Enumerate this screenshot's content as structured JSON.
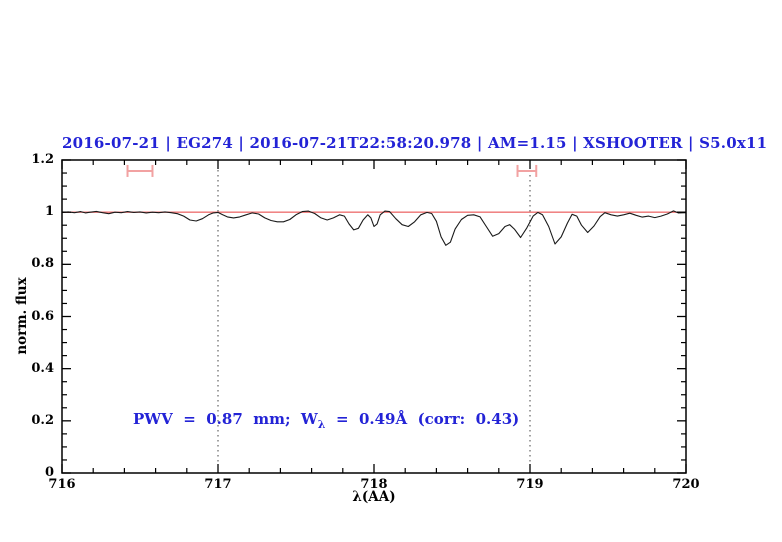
{
  "title": {
    "text": "2016-07-21 | EG274 | 2016-07-21T22:58:20.978 | AM=1.15 | XSHOOTER | S5.0x11",
    "color": "#2323d6"
  },
  "annotation": {
    "part1": "PWV  =  0.87  mm;  W",
    "subscript": "λ",
    "part2": "  =  0.49Å  (corr:  0.43)",
    "color": "#2323d6"
  },
  "chart_data": {
    "type": "line",
    "title": "2016-07-21 | EG274 | 2016-07-21T22:58:20.978 | AM=1.15 | XSHOOTER | S5.0x11",
    "xlabel": "λ(AA)",
    "ylabel": "norm. flux",
    "xlim": [
      716,
      720
    ],
    "ylim": [
      0,
      1.2
    ],
    "grid": false,
    "x_major_ticks": [
      716,
      717,
      718,
      719,
      720
    ],
    "x_tick_labels": [
      "716",
      "717",
      "718",
      "719",
      "720"
    ],
    "x_minor_step": 0.2,
    "y_major_ticks": [
      0,
      0.2,
      0.4,
      0.6,
      0.8,
      1,
      1.2
    ],
    "y_tick_labels": [
      "0",
      "0.2",
      "0.4",
      "0.6",
      "0.8",
      "1",
      "1.2"
    ],
    "y_minor_step": 0.05,
    "vlines": {
      "x": [
        717,
        719
      ],
      "style": "dotted",
      "color": "#444444"
    },
    "continuum_line": {
      "y": 1.0,
      "color": "#ee7272"
    },
    "range_markers": {
      "color": "#f2a2a2",
      "y": 1.158,
      "cap_halfheight": 0.023,
      "items": [
        {
          "x1": 716.42,
          "x2": 716.58
        },
        {
          "x1": 718.92,
          "x2": 719.04
        }
      ]
    },
    "series": [
      {
        "name": "spectrum",
        "color": "#1a1a1a",
        "points": [
          [
            716.0,
            0.999
          ],
          [
            716.04,
            1.001
          ],
          [
            716.08,
            0.998
          ],
          [
            716.12,
            1.002
          ],
          [
            716.15,
            0.997
          ],
          [
            716.18,
            1.0
          ],
          [
            716.22,
            1.003
          ],
          [
            716.26,
            0.998
          ],
          [
            716.3,
            0.994
          ],
          [
            716.34,
            1.0
          ],
          [
            716.38,
            0.998
          ],
          [
            716.42,
            1.002
          ],
          [
            716.46,
            0.999
          ],
          [
            716.5,
            1.001
          ],
          [
            716.54,
            0.997
          ],
          [
            716.58,
            1.0
          ],
          [
            716.62,
            0.998
          ],
          [
            716.66,
            1.001
          ],
          [
            716.7,
            0.998
          ],
          [
            716.74,
            0.994
          ],
          [
            716.78,
            0.985
          ],
          [
            716.82,
            0.97
          ],
          [
            716.86,
            0.966
          ],
          [
            716.9,
            0.975
          ],
          [
            716.94,
            0.99
          ],
          [
            716.97,
            0.997
          ],
          [
            717.0,
            0.999
          ],
          [
            717.03,
            0.99
          ],
          [
            717.06,
            0.982
          ],
          [
            717.1,
            0.978
          ],
          [
            717.14,
            0.982
          ],
          [
            717.18,
            0.99
          ],
          [
            717.22,
            0.997
          ],
          [
            717.26,
            0.993
          ],
          [
            717.3,
            0.978
          ],
          [
            717.34,
            0.968
          ],
          [
            717.38,
            0.963
          ],
          [
            717.42,
            0.963
          ],
          [
            717.46,
            0.972
          ],
          [
            717.5,
            0.99
          ],
          [
            717.54,
            1.002
          ],
          [
            717.58,
            1.004
          ],
          [
            717.62,
            0.995
          ],
          [
            717.66,
            0.978
          ],
          [
            717.7,
            0.97
          ],
          [
            717.74,
            0.978
          ],
          [
            717.78,
            0.99
          ],
          [
            717.81,
            0.985
          ],
          [
            717.84,
            0.955
          ],
          [
            717.87,
            0.932
          ],
          [
            717.9,
            0.938
          ],
          [
            717.93,
            0.97
          ],
          [
            717.96,
            0.99
          ],
          [
            717.98,
            0.978
          ],
          [
            718.0,
            0.945
          ],
          [
            718.02,
            0.955
          ],
          [
            718.04,
            0.99
          ],
          [
            718.07,
            1.004
          ],
          [
            718.1,
            1.002
          ],
          [
            718.14,
            0.975
          ],
          [
            718.18,
            0.952
          ],
          [
            718.22,
            0.945
          ],
          [
            718.26,
            0.963
          ],
          [
            718.3,
            0.99
          ],
          [
            718.34,
            0.999
          ],
          [
            718.37,
            0.995
          ],
          [
            718.4,
            0.965
          ],
          [
            718.43,
            0.905
          ],
          [
            718.46,
            0.873
          ],
          [
            718.49,
            0.885
          ],
          [
            718.52,
            0.935
          ],
          [
            718.56,
            0.972
          ],
          [
            718.6,
            0.988
          ],
          [
            718.64,
            0.99
          ],
          [
            718.68,
            0.982
          ],
          [
            718.72,
            0.945
          ],
          [
            718.76,
            0.908
          ],
          [
            718.8,
            0.918
          ],
          [
            718.84,
            0.945
          ],
          [
            718.87,
            0.952
          ],
          [
            718.9,
            0.935
          ],
          [
            718.94,
            0.903
          ],
          [
            718.98,
            0.94
          ],
          [
            719.02,
            0.985
          ],
          [
            719.05,
            0.999
          ],
          [
            719.08,
            0.99
          ],
          [
            719.12,
            0.945
          ],
          [
            719.16,
            0.878
          ],
          [
            719.2,
            0.905
          ],
          [
            719.24,
            0.958
          ],
          [
            719.27,
            0.992
          ],
          [
            719.3,
            0.985
          ],
          [
            719.33,
            0.95
          ],
          [
            719.37,
            0.922
          ],
          [
            719.41,
            0.947
          ],
          [
            719.45,
            0.983
          ],
          [
            719.48,
            0.998
          ],
          [
            719.52,
            0.99
          ],
          [
            719.56,
            0.985
          ],
          [
            719.6,
            0.99
          ],
          [
            719.64,
            0.996
          ],
          [
            719.68,
            0.988
          ],
          [
            719.72,
            0.981
          ],
          [
            719.76,
            0.985
          ],
          [
            719.8,
            0.979
          ],
          [
            719.84,
            0.985
          ],
          [
            719.88,
            0.993
          ],
          [
            719.92,
            1.005
          ],
          [
            719.95,
            0.997
          ],
          [
            720.0,
            0.998
          ]
        ]
      }
    ]
  }
}
